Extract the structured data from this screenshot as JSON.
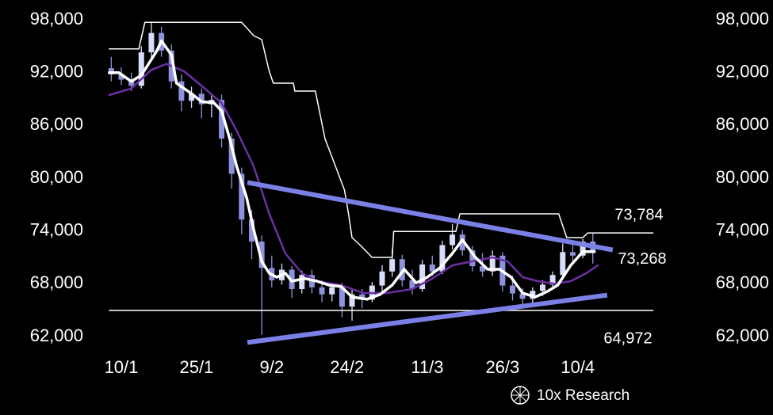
{
  "chart_data": {
    "type": "candlestick",
    "xlim": [
      -3,
      107
    ],
    "xticks": [
      {
        "value": 0,
        "label": "10/1"
      },
      {
        "value": 15,
        "label": "25/1"
      },
      {
        "value": 30,
        "label": "9/2"
      },
      {
        "value": 45,
        "label": "24/2"
      },
      {
        "value": 61,
        "label": "11/3"
      },
      {
        "value": 76,
        "label": "26/3"
      },
      {
        "value": 91,
        "label": "10/4"
      }
    ],
    "ylim": [
      62000,
      98000
    ],
    "yticks": [
      {
        "value": 98000,
        "label": "98,000"
      },
      {
        "value": 92000,
        "label": "92,000"
      },
      {
        "value": 86000,
        "label": "86,000"
      },
      {
        "value": 80000,
        "label": "80,000"
      },
      {
        "value": 74000,
        "label": "74,000"
      },
      {
        "value": 68000,
        "label": "68,000"
      },
      {
        "value": 62000,
        "label": "62,000"
      }
    ],
    "up_color": "#d9dcfa",
    "down_color": "#8d92dc",
    "candles": {
      "x": [
        -2,
        0,
        2,
        4,
        6,
        8,
        10,
        12,
        14,
        16,
        18,
        20,
        22,
        24,
        26,
        28,
        30,
        32,
        34,
        36,
        38,
        40,
        42,
        44,
        46,
        48,
        50,
        52,
        54,
        56,
        58,
        60,
        62,
        64,
        66,
        68,
        70,
        72,
        74,
        76,
        78,
        80,
        82,
        84,
        86,
        88,
        90,
        92,
        94
      ],
      "open": [
        92500,
        91800,
        91200,
        90500,
        94300,
        96500,
        94500,
        91000,
        88800,
        89600,
        88400,
        88900,
        84500,
        80500,
        75300,
        72800,
        69800,
        68400,
        69600,
        67400,
        69000,
        67600,
        66800,
        67600,
        65400,
        66800,
        66200,
        67800,
        69400,
        70800,
        68400,
        67400,
        70200,
        69400,
        72400,
        73600,
        71800,
        70000,
        69400,
        71200,
        67800,
        66900,
        66300,
        67200,
        67900,
        69000,
        71600,
        71200,
        72800
      ],
      "high": [
        93800,
        92600,
        92000,
        95000,
        97800,
        97200,
        95200,
        91800,
        90400,
        90200,
        89400,
        89500,
        85200,
        81200,
        76400,
        73500,
        71200,
        70300,
        70000,
        69500,
        69600,
        68400,
        68000,
        68100,
        67300,
        67400,
        68200,
        70100,
        71900,
        71300,
        69600,
        70700,
        71200,
        72900,
        74800,
        74100,
        72300,
        71500,
        71800,
        71600,
        68900,
        67500,
        67600,
        68400,
        69400,
        72600,
        72700,
        73100,
        73800
      ],
      "low": [
        91000,
        90600,
        89900,
        90200,
        93500,
        93800,
        90200,
        87600,
        88000,
        86800,
        86900,
        83500,
        78800,
        73600,
        70800,
        62200,
        67600,
        67900,
        66400,
        66900,
        66900,
        65900,
        66000,
        64200,
        63800,
        65200,
        65900,
        67000,
        68800,
        67700,
        66800,
        67100,
        68900,
        69100,
        71900,
        71200,
        69400,
        68800,
        68900,
        67100,
        66100,
        65600,
        65800,
        66600,
        67400,
        68700,
        70600,
        70900,
        70300
      ],
      "close": [
        91800,
        91200,
        90500,
        94300,
        96500,
        94500,
        91000,
        88800,
        89600,
        88400,
        88900,
        84500,
        80500,
        75300,
        72800,
        69800,
        68400,
        69600,
        67400,
        69000,
        67600,
        66800,
        67600,
        65400,
        66800,
        66200,
        67800,
        69400,
        70800,
        68400,
        67400,
        70200,
        69400,
        72400,
        73600,
        71800,
        70000,
        69400,
        71200,
        67800,
        66900,
        66300,
        67200,
        67900,
        69000,
        71600,
        71200,
        72800,
        71500
      ]
    },
    "series": [
      {
        "color": "#ffffff",
        "width": 1.5,
        "x": [
          -2.4,
          3.5,
          4.7,
          24,
          26.4,
          28,
          29.5,
          30.3,
          34.3,
          34.6,
          38.7,
          40.6,
          43,
          44.5,
          45.3,
          46,
          47.7,
          50,
          54,
          54.3,
          66.7,
          67.5,
          87.2,
          88.8,
          92,
          93,
          106
        ],
        "values": [
          94700,
          94700,
          97700,
          97700,
          96200,
          95750,
          92150,
          90800,
          90800,
          89900,
          89900,
          84500,
          80900,
          78650,
          75950,
          73250,
          72350,
          71000,
          71000,
          73950,
          73950,
          75950,
          75950,
          73250,
          73250,
          73784,
          73784
        ]
      },
      {
        "color": "#ffffff",
        "width": 1.5,
        "x": [
          -2.4,
          106
        ],
        "values": [
          64972,
          64972
        ]
      },
      {
        "color": "#6c2fa6",
        "width": 2.5,
        "x": [
          -2.4,
          2,
          6,
          9,
          12.5,
          16,
          20,
          23,
          26.4,
          29.5,
          32.7,
          36,
          39,
          43.8,
          48.3,
          53,
          58,
          62,
          66,
          70,
          74,
          77,
          80,
          83,
          86.4,
          89.6,
          92.7,
          95
        ],
        "values": [
          89450,
          90200,
          92300,
          93000,
          92150,
          90500,
          88550,
          85400,
          81350,
          75950,
          71450,
          69200,
          68300,
          67850,
          66950,
          66950,
          67400,
          68600,
          70100,
          70550,
          71000,
          70550,
          68750,
          68300,
          68000,
          68300,
          69200,
          70100
        ]
      },
      {
        "color": "#ffffff",
        "width": 3.5,
        "x": [
          -2.4,
          -0.5,
          2,
          4,
          7,
          8,
          10,
          11,
          14,
          16,
          18.5,
          20,
          21.6,
          23,
          25,
          26.4,
          28,
          29.5,
          31,
          32.7,
          34,
          36.6,
          39,
          41.4,
          43.8,
          46,
          49,
          51.6,
          54,
          56.4,
          58.8,
          61,
          63.5,
          66,
          68,
          70.6,
          73,
          75.4,
          77.7,
          80,
          82.5,
          85,
          87,
          89.6,
          92,
          94.3
        ],
        "values": [
          92000,
          92000,
          91000,
          91700,
          94400,
          95600,
          94000,
          90800,
          89600,
          88700,
          88550,
          87650,
          84500,
          81350,
          77750,
          74150,
          70550,
          69200,
          68750,
          69200,
          68300,
          68600,
          68300,
          67850,
          67700,
          66500,
          66250,
          66800,
          67850,
          69650,
          68100,
          68750,
          69800,
          71450,
          73000,
          71000,
          69650,
          69650,
          68750,
          66950,
          66500,
          67150,
          67850,
          70100,
          71650,
          71650
        ]
      },
      {
        "color": "#7b80e6",
        "width": 6,
        "x": [
          25.6,
          97.5
        ],
        "values": [
          79460,
          71900
        ]
      },
      {
        "color": "#7b80e6",
        "width": 6,
        "x": [
          25.6,
          96.4
        ],
        "values": [
          61370,
          66680
        ]
      }
    ],
    "annotations": [
      {
        "value": 73784,
        "label": "73,784"
      },
      {
        "value": 73268,
        "label": "73,268"
      },
      {
        "value": 64972,
        "label": "64,972"
      }
    ]
  },
  "footer": {
    "brand": "10x Research"
  }
}
